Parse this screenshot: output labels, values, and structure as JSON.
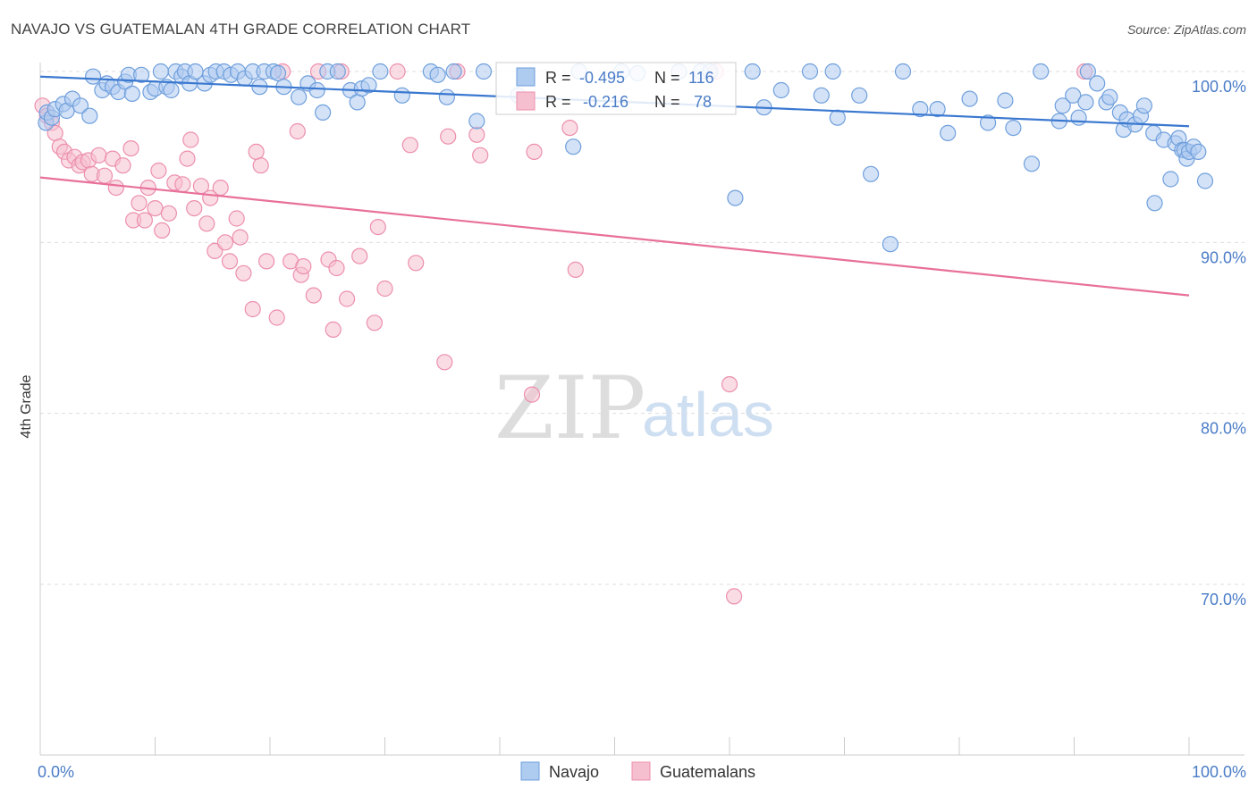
{
  "header": {
    "title": "NAVAJO VS GUATEMALAN 4TH GRADE CORRELATION CHART",
    "source": "Source: ZipAtlas.com"
  },
  "watermark": {
    "zip": "ZIP",
    "atlas": "atlas"
  },
  "colors": {
    "navajo_fill": "#aecbf0",
    "navajo_stroke": "#6f9fdc",
    "navajo_line": "#3a78d0",
    "guat_fill": "#f6bfd0",
    "guat_stroke": "#ec8fad",
    "guat_line": "#e8709a",
    "tick_text": "#4a7cc7",
    "grid": "#dddddd"
  },
  "stats": {
    "r_label": "R =",
    "n_label": "N =",
    "navajo_r": "-0.495",
    "navajo_n": "116",
    "guat_r": "-0.216",
    "guat_n": "78"
  },
  "legend": {
    "navajo": "Navajo",
    "guatemalans": "Guatemalans"
  },
  "chart_data": {
    "type": "scatter",
    "title": "NAVAJO VS GUATEMALAN 4TH GRADE CORRELATION CHART",
    "xlabel": "",
    "ylabel": "4th Grade",
    "xlim": [
      0,
      100
    ],
    "ylim": [
      59,
      100.5
    ],
    "x_tick_labels": {
      "left": "0.0%",
      "right": "100.0%"
    },
    "y_ticks": [
      {
        "value": 100,
        "label": "100.0%"
      },
      {
        "value": 90,
        "label": "90.0%"
      },
      {
        "value": 80,
        "label": "80.0%"
      },
      {
        "value": 70,
        "label": "70.0%"
      }
    ],
    "grid": "horizontal-dashed",
    "legend_position": "bottom-center",
    "series": [
      {
        "name": "Navajo",
        "color": "#aecbf0",
        "trend": {
          "x": [
            0,
            100
          ],
          "y": [
            99.7,
            96.8
          ]
        },
        "points": [
          [
            0.5,
            97.0
          ],
          [
            0.6,
            97.6
          ],
          [
            1.0,
            97.3
          ],
          [
            1.3,
            97.8
          ],
          [
            2.0,
            98.1
          ],
          [
            2.3,
            97.7
          ],
          [
            2.8,
            98.4
          ],
          [
            3.5,
            98.0
          ],
          [
            4.3,
            97.4
          ],
          [
            4.6,
            99.7
          ],
          [
            5.4,
            98.9
          ],
          [
            5.8,
            99.3
          ],
          [
            6.3,
            99.1
          ],
          [
            6.8,
            98.8
          ],
          [
            7.4,
            99.4
          ],
          [
            7.7,
            99.8
          ],
          [
            8.0,
            98.7
          ],
          [
            8.8,
            99.8
          ],
          [
            9.6,
            98.8
          ],
          [
            10.0,
            99.0
          ],
          [
            10.5,
            100.0
          ],
          [
            11.0,
            99.1
          ],
          [
            11.4,
            98.9
          ],
          [
            11.8,
            100.0
          ],
          [
            12.3,
            99.7
          ],
          [
            12.6,
            100.0
          ],
          [
            13.0,
            99.3
          ],
          [
            13.5,
            100.0
          ],
          [
            14.3,
            99.3
          ],
          [
            14.8,
            99.8
          ],
          [
            15.3,
            100.0
          ],
          [
            16.0,
            100.0
          ],
          [
            16.6,
            99.8
          ],
          [
            17.2,
            100.0
          ],
          [
            17.8,
            99.6
          ],
          [
            18.5,
            100.0
          ],
          [
            19.1,
            99.1
          ],
          [
            19.5,
            100.0
          ],
          [
            20.3,
            100.0
          ],
          [
            20.7,
            99.9
          ],
          [
            21.2,
            99.1
          ],
          [
            22.5,
            98.5
          ],
          [
            23.3,
            99.3
          ],
          [
            24.1,
            98.9
          ],
          [
            24.6,
            97.6
          ],
          [
            25.0,
            100.0
          ],
          [
            25.9,
            100.0
          ],
          [
            27.0,
            98.9
          ],
          [
            27.6,
            98.2
          ],
          [
            28.0,
            99.0
          ],
          [
            28.6,
            99.2
          ],
          [
            29.6,
            100.0
          ],
          [
            31.5,
            98.6
          ],
          [
            34.0,
            100.0
          ],
          [
            34.6,
            99.8
          ],
          [
            35.4,
            98.5
          ],
          [
            36.0,
            100.0
          ],
          [
            38.0,
            97.1
          ],
          [
            38.6,
            100.0
          ],
          [
            41.6,
            98.6
          ],
          [
            46.4,
            95.6
          ],
          [
            46.9,
            100.0
          ],
          [
            50.6,
            100.0
          ],
          [
            52.0,
            99.9
          ],
          [
            55.6,
            100.0
          ],
          [
            57.5,
            100.0
          ],
          [
            58.3,
            100.0
          ],
          [
            60.5,
            92.6
          ],
          [
            62.0,
            100.0
          ],
          [
            63.0,
            97.9
          ],
          [
            64.5,
            98.9
          ],
          [
            67.0,
            100.0
          ],
          [
            68.0,
            98.6
          ],
          [
            69.0,
            100.0
          ],
          [
            69.4,
            97.3
          ],
          [
            71.3,
            98.6
          ],
          [
            72.3,
            94.0
          ],
          [
            74.0,
            89.9
          ],
          [
            75.1,
            100.0
          ],
          [
            76.6,
            97.8
          ],
          [
            78.1,
            97.8
          ],
          [
            79.0,
            96.4
          ],
          [
            80.9,
            98.4
          ],
          [
            82.5,
            97.0
          ],
          [
            84.0,
            98.3
          ],
          [
            84.7,
            96.7
          ],
          [
            86.3,
            94.6
          ],
          [
            87.1,
            100.0
          ],
          [
            88.7,
            97.1
          ],
          [
            89.0,
            98.0
          ],
          [
            89.9,
            98.6
          ],
          [
            90.4,
            97.3
          ],
          [
            91.0,
            98.2
          ],
          [
            91.2,
            100.0
          ],
          [
            92.0,
            99.3
          ],
          [
            92.8,
            98.2
          ],
          [
            93.1,
            98.5
          ],
          [
            94.0,
            97.6
          ],
          [
            94.3,
            96.6
          ],
          [
            94.6,
            97.2
          ],
          [
            95.3,
            96.9
          ],
          [
            95.8,
            97.4
          ],
          [
            96.1,
            98.0
          ],
          [
            96.9,
            96.4
          ],
          [
            97.0,
            92.3
          ],
          [
            97.8,
            96.0
          ],
          [
            98.4,
            93.7
          ],
          [
            98.8,
            95.8
          ],
          [
            99.1,
            96.1
          ],
          [
            99.4,
            95.4
          ],
          [
            99.6,
            95.4
          ],
          [
            99.8,
            94.9
          ],
          [
            100.0,
            95.3
          ],
          [
            100.4,
            95.6
          ],
          [
            100.8,
            95.3
          ],
          [
            101.4,
            93.6
          ]
        ]
      },
      {
        "name": "Guatemalans",
        "color": "#f6bfd0",
        "trend": {
          "x": [
            0,
            100
          ],
          "y": [
            93.8,
            86.9
          ]
        },
        "points": [
          [
            0.2,
            98.0
          ],
          [
            0.6,
            97.4
          ],
          [
            1.0,
            97.0
          ],
          [
            1.3,
            96.4
          ],
          [
            1.7,
            95.6
          ],
          [
            2.1,
            95.3
          ],
          [
            2.5,
            94.8
          ],
          [
            3.0,
            95.0
          ],
          [
            3.4,
            94.5
          ],
          [
            3.7,
            94.7
          ],
          [
            4.2,
            94.8
          ],
          [
            4.5,
            94.0
          ],
          [
            5.1,
            95.1
          ],
          [
            5.6,
            93.9
          ],
          [
            6.3,
            94.9
          ],
          [
            6.6,
            93.2
          ],
          [
            7.2,
            94.5
          ],
          [
            7.9,
            95.5
          ],
          [
            8.1,
            91.3
          ],
          [
            8.6,
            92.3
          ],
          [
            9.1,
            91.3
          ],
          [
            9.4,
            93.2
          ],
          [
            10.0,
            92.0
          ],
          [
            10.3,
            94.2
          ],
          [
            10.6,
            90.7
          ],
          [
            11.2,
            91.7
          ],
          [
            11.7,
            93.5
          ],
          [
            12.4,
            93.4
          ],
          [
            12.8,
            94.9
          ],
          [
            13.1,
            96.0
          ],
          [
            13.4,
            92.0
          ],
          [
            14.0,
            93.3
          ],
          [
            14.5,
            91.1
          ],
          [
            14.8,
            92.6
          ],
          [
            15.2,
            89.5
          ],
          [
            15.7,
            93.2
          ],
          [
            16.1,
            90.0
          ],
          [
            16.5,
            88.9
          ],
          [
            17.1,
            91.4
          ],
          [
            17.4,
            90.3
          ],
          [
            17.7,
            88.2
          ],
          [
            18.5,
            86.1
          ],
          [
            18.8,
            95.3
          ],
          [
            19.2,
            94.5
          ],
          [
            19.7,
            88.9
          ],
          [
            20.6,
            85.6
          ],
          [
            21.1,
            100.0
          ],
          [
            21.8,
            88.9
          ],
          [
            22.4,
            96.5
          ],
          [
            22.7,
            88.1
          ],
          [
            22.9,
            88.6
          ],
          [
            23.8,
            86.9
          ],
          [
            24.2,
            100.0
          ],
          [
            25.1,
            89.0
          ],
          [
            25.5,
            84.9
          ],
          [
            25.8,
            88.5
          ],
          [
            26.2,
            100.0
          ],
          [
            26.7,
            86.7
          ],
          [
            27.8,
            89.2
          ],
          [
            29.1,
            85.3
          ],
          [
            29.4,
            90.9
          ],
          [
            30.0,
            87.3
          ],
          [
            31.1,
            100.0
          ],
          [
            32.2,
            95.7
          ],
          [
            32.7,
            88.8
          ],
          [
            35.2,
            83.0
          ],
          [
            35.5,
            96.2
          ],
          [
            36.3,
            100.0
          ],
          [
            38.0,
            96.3
          ],
          [
            38.3,
            95.1
          ],
          [
            42.8,
            81.1
          ],
          [
            43.0,
            95.3
          ],
          [
            46.1,
            96.7
          ],
          [
            46.6,
            88.4
          ],
          [
            58.8,
            100.0
          ],
          [
            60.0,
            81.7
          ],
          [
            60.4,
            69.3
          ],
          [
            90.9,
            100.0
          ]
        ]
      }
    ]
  }
}
